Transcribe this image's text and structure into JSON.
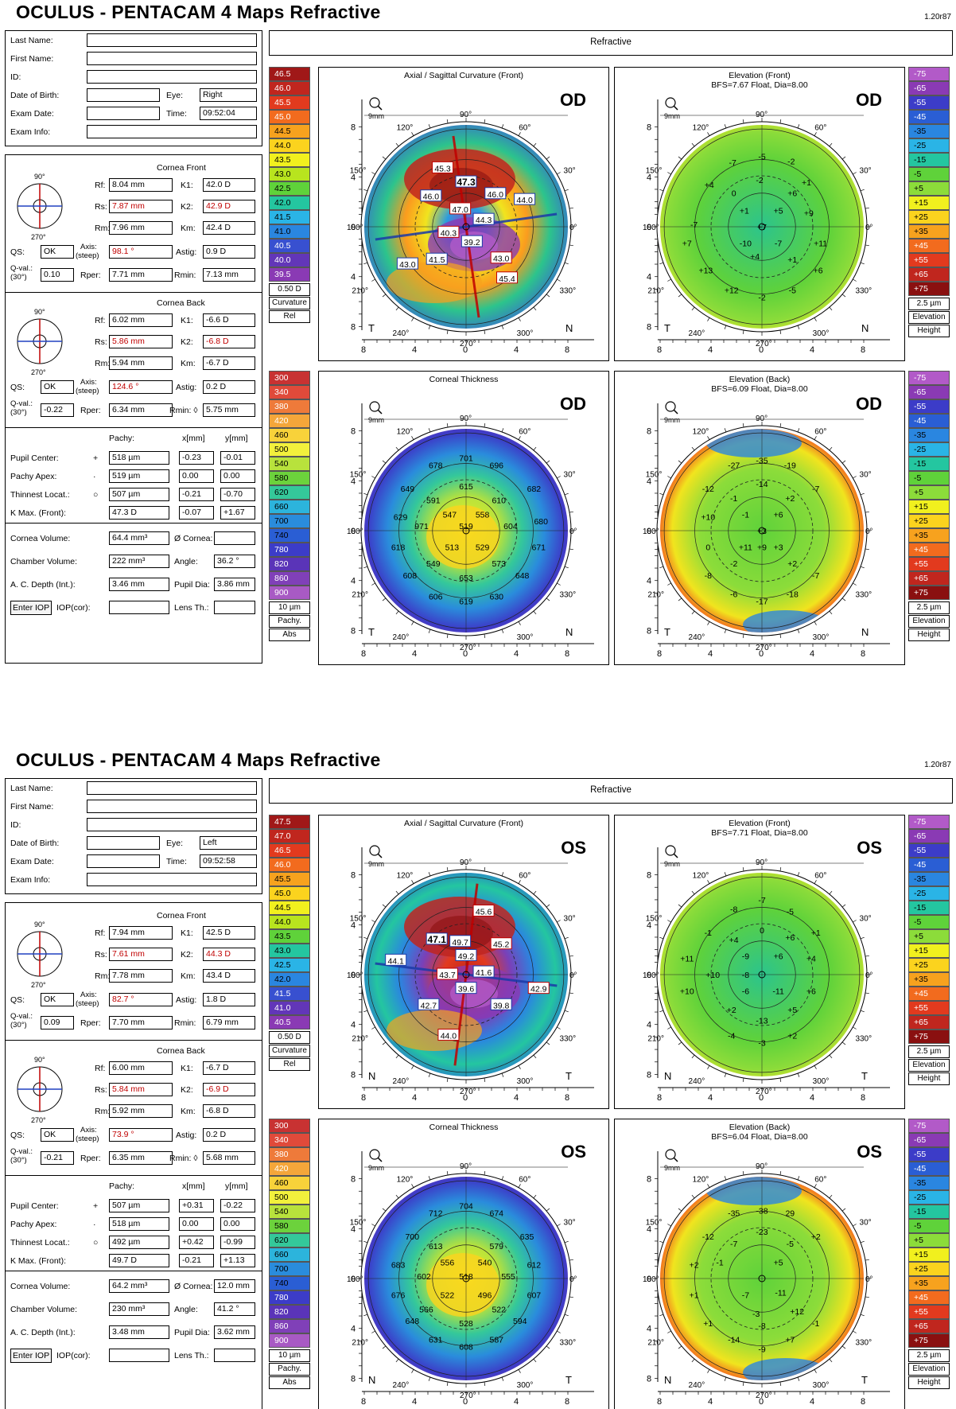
{
  "reports": [
    {
      "title": "OCULUS  -  PENTACAM   4 Maps Refractive",
      "version": "1.20r87",
      "panel": "Refractive",
      "eye_code": "OD",
      "patient": {
        "last_name_label": "Last Name:",
        "last_name": "",
        "first_name_label": "First Name:",
        "first_name": "",
        "id_label": "ID:",
        "id": "",
        "dob_label": "Date of Birth:",
        "dob": "",
        "eye_label": "Eye:",
        "eye": "Right",
        "exam_date_label": "Exam Date:",
        "exam_date": "",
        "time_label": "Time:",
        "time": "09:52:04",
        "exam_info_label": "Exam Info:",
        "exam_info": ""
      },
      "cornea_front": {
        "title": "Cornea Front",
        "rf_label": "Rf:",
        "rf": "8.04 mm",
        "k1_label": "K1:",
        "k1": "42.0 D",
        "rs_label": "Rs:",
        "rs": "7.87 mm",
        "k2_label": "K2:",
        "k2": "42.9 D",
        "rm_label": "Rm:",
        "rm": "7.96 mm",
        "km_label": "Km:",
        "km": "42.4 D",
        "qs_label": "QS:",
        "qs": "OK",
        "axis_label": "Axis:",
        "axis_sub": "(steep)",
        "axis": "98.1 °",
        "astig_label": "Astig:",
        "astig": "0.9 D",
        "qval_label": "Q-val.:",
        "qval_sub": "(30°)",
        "qval": "0.10",
        "rper_label": "Rper:",
        "rper": "7.71 mm",
        "rmin_label": "Rmin:",
        "rmin": "7.13 mm"
      },
      "cornea_back": {
        "title": "Cornea Back",
        "rf_label": "Rf:",
        "rf": "6.02 mm",
        "k1_label": "K1:",
        "k1": "-6.6 D",
        "rs_label": "Rs:",
        "rs": "5.86 mm",
        "k2_label": "K2:",
        "k2": "-6.8 D",
        "rm_label": "Rm:",
        "rm": "5.94 mm",
        "km_label": "Km:",
        "km": "-6.7 D",
        "qs_label": "QS:",
        "qs": "OK",
        "axis_label": "Axis:",
        "axis_sub": "(steep)",
        "axis": "124.6 °",
        "astig_label": "Astig:",
        "astig": "0.2 D",
        "qval_label": "Q-val.:",
        "qval_sub": "(30°)",
        "qval": "-0.22",
        "rper_label": "Rper:",
        "rper": "6.34 mm",
        "rmin_label": "Rmin: ◊",
        "rmin": "5.75 mm"
      },
      "pachy": {
        "col_pachy": "Pachy:",
        "col_x": "x[mm]",
        "col_y": "y[mm]",
        "rows": [
          {
            "label": "Pupil Center:",
            "sym": "+",
            "pachy": "518 µm",
            "x": "-0.23",
            "y": "-0.01"
          },
          {
            "label": "Pachy Apex:",
            "sym": "·",
            "pachy": "519 µm",
            "x": "0.00",
            "y": "0.00"
          },
          {
            "label": "Thinnest Locat.:",
            "sym": "○",
            "pachy": "507 µm",
            "x": "-0.21",
            "y": "-0.70"
          },
          {
            "label": "K Max. (Front):",
            "sym": "",
            "pachy": "47.3 D",
            "x": "-0.07",
            "y": "+1.67"
          }
        ]
      },
      "volume": {
        "cornea_volume_label": "Cornea Volume:",
        "cornea_volume": "64.4 mm³",
        "cornea_diam_label": "Ø Cornea:",
        "cornea_diam": "",
        "chamber_volume_label": "Chamber Volume:",
        "chamber_volume": "222 mm³",
        "angle_label": "Angle:",
        "angle": "36.2 °",
        "acd_label": "A. C. Depth (Int.):",
        "acd": "3.46 mm",
        "pupil_dia_label": "Pupil Dia:",
        "pupil_dia": "3.86 mm",
        "enter_iop": "Enter IOP",
        "iop_cor_label": "IOP(cor):",
        "iop_cor": "",
        "lens_th_label": "Lens Th.:",
        "lens_th": ""
      },
      "curv_scale": {
        "values": [
          "46.5",
          "46.0",
          "45.5",
          "45.0",
          "44.5",
          "44.0",
          "43.5",
          "43.0",
          "42.5",
          "42.0",
          "41.5",
          "41.0",
          "40.5",
          "40.0",
          "39.5"
        ],
        "step": "0.50 D",
        "label1": "Curvature",
        "label2": "Rel"
      },
      "pachy_scale": {
        "values": [
          "300",
          "340",
          "380",
          "420",
          "460",
          "500",
          "540",
          "580",
          "620",
          "660",
          "700",
          "740",
          "780",
          "820",
          "860",
          "900"
        ],
        "step": "10 µm",
        "label1": "Pachy.",
        "label2": "Abs"
      },
      "elev_scale": {
        "values": [
          "-75",
          "-65",
          "-55",
          "-45",
          "-35",
          "-25",
          "-15",
          "-5",
          "+5",
          "+15",
          "+25",
          "+35",
          "+45",
          "+55",
          "+65",
          "+75"
        ],
        "step": "2.5 µm",
        "label1": "Elevation",
        "label2": "Height"
      },
      "maps": {
        "axial": {
          "title": "Axial / Sagittal Curvature (Front)",
          "subtitle": "",
          "left": "T",
          "right": "N",
          "labels": [
            "45.3",
            "47.3",
            "46.0",
            "47.0",
            "46.0",
            "44.0",
            "40.3",
            "44.3",
            "39.2",
            "43.0",
            "43.0",
            "41.5",
            "45.4"
          ]
        },
        "elev_front": {
          "title": "Elevation (Front)",
          "subtitle": "BFS=7.67 Float, Dia=8.00",
          "left": "T",
          "right": "N",
          "labels": [
            "-5",
            "-7",
            "-2",
            "-2",
            "+1",
            "+4",
            "0",
            "+6",
            "+1",
            "+5",
            "+9",
            "-7",
            "+7",
            "-10",
            "-7",
            "+11",
            "+7",
            "+1",
            "+13",
            "+4",
            "+6",
            "+12",
            "-2",
            "-5"
          ]
        },
        "thickness": {
          "title": "Corneal Thickness",
          "subtitle": "",
          "left": "T",
          "right": "N",
          "labels": [
            "701",
            "678",
            "696",
            "615",
            "649",
            "591",
            "610",
            "682",
            "547",
            "558",
            "629",
            "971",
            "519",
            "604",
            "618",
            "513",
            "529",
            "680",
            "671",
            "549",
            "573",
            "608",
            "653",
            "648",
            "606",
            "619",
            "630"
          ]
        },
        "elev_back": {
          "title": "Elevation (Back)",
          "subtitle": "BFS=6.09 Float, Dia=8.00",
          "left": "T",
          "right": "N",
          "labels": [
            "-35",
            "-27",
            "-19",
            "-14",
            "-12",
            "+2",
            "-1",
            "-7",
            "-1",
            "+6",
            "+3",
            "+10",
            "0",
            "+3",
            "+11",
            "+9",
            "+2",
            "-8",
            "-2",
            "-7",
            "-6",
            "-17",
            "-18"
          ]
        }
      }
    },
    {
      "title": "OCULUS  -  PENTACAM   4 Maps Refractive",
      "version": "1.20r87",
      "panel": "Refractive",
      "eye_code": "OS",
      "patient": {
        "last_name_label": "Last Name:",
        "last_name": "",
        "first_name_label": "First Name:",
        "first_name": "",
        "id_label": "ID:",
        "id": "",
        "dob_label": "Date of Birth:",
        "dob": "",
        "eye_label": "Eye:",
        "eye": "Left",
        "exam_date_label": "Exam Date:",
        "exam_date": "",
        "time_label": "Time:",
        "time": "09:52:58",
        "exam_info_label": "Exam Info:",
        "exam_info": ""
      },
      "cornea_front": {
        "title": "Cornea Front",
        "rf_label": "Rf:",
        "rf": "7.94 mm",
        "k1_label": "K1:",
        "k1": "42.5 D",
        "rs_label": "Rs:",
        "rs": "7.61 mm",
        "k2_label": "K2:",
        "k2": "44.3 D",
        "rm_label": "Rm:",
        "rm": "7.78 mm",
        "km_label": "Km:",
        "km": "43.4 D",
        "qs_label": "QS:",
        "qs": "OK",
        "axis_label": "Axis:",
        "axis_sub": "(steep)",
        "axis": "82.7 °",
        "astig_label": "Astig:",
        "astig": "1.8 D",
        "qval_label": "Q-val.:",
        "qval_sub": "(30°)",
        "qval": "0.09",
        "rper_label": "Rper:",
        "rper": "7.70 mm",
        "rmin_label": "Rmin:",
        "rmin": "6.79 mm"
      },
      "cornea_back": {
        "title": "Cornea Back",
        "rf_label": "Rf:",
        "rf": "6.00 mm",
        "k1_label": "K1:",
        "k1": "-6.7 D",
        "rs_label": "Rs:",
        "rs": "5.84 mm",
        "k2_label": "K2:",
        "k2": "-6.9 D",
        "rm_label": "Rm:",
        "rm": "5.92 mm",
        "km_label": "Km:",
        "km": "-6.8 D",
        "qs_label": "QS:",
        "qs": "OK",
        "axis_label": "Axis:",
        "axis_sub": "(steep)",
        "axis": "73.9 °",
        "astig_label": "Astig:",
        "astig": "0.2 D",
        "qval_label": "Q-val.:",
        "qval_sub": "(30°)",
        "qval": "-0.21",
        "rper_label": "Rper:",
        "rper": "6.35 mm",
        "rmin_label": "Rmin: ◊",
        "rmin": "5.68 mm"
      },
      "pachy": {
        "col_pachy": "Pachy:",
        "col_x": "x[mm]",
        "col_y": "y[mm]",
        "rows": [
          {
            "label": "Pupil Center:",
            "sym": "+",
            "pachy": "507 µm",
            "x": "+0.31",
            "y": "-0.22"
          },
          {
            "label": "Pachy Apex:",
            "sym": "·",
            "pachy": "518 µm",
            "x": "0.00",
            "y": "0.00"
          },
          {
            "label": "Thinnest Locat.:",
            "sym": "○",
            "pachy": "492 µm",
            "x": "+0.42",
            "y": "-0.99"
          },
          {
            "label": "K Max. (Front):",
            "sym": "",
            "pachy": "49.7 D",
            "x": "-0.21",
            "y": "+1.13"
          }
        ]
      },
      "volume": {
        "cornea_volume_label": "Cornea Volume:",
        "cornea_volume": "64.2 mm³",
        "cornea_diam_label": "Ø Cornea:",
        "cornea_diam": "12.0 mm",
        "chamber_volume_label": "Chamber Volume:",
        "chamber_volume": "230 mm³",
        "angle_label": "Angle:",
        "angle": "41.2 °",
        "acd_label": "A. C. Depth (Int.):",
        "acd": "3.48 mm",
        "pupil_dia_label": "Pupil Dia:",
        "pupil_dia": "3.62 mm",
        "enter_iop": "Enter IOP",
        "iop_cor_label": "IOP(cor):",
        "iop_cor": "",
        "lens_th_label": "Lens Th.:",
        "lens_th": ""
      },
      "curv_scale": {
        "values": [
          "47.5",
          "47.0",
          "46.5",
          "46.0",
          "45.5",
          "45.0",
          "44.5",
          "44.0",
          "43.5",
          "43.0",
          "42.5",
          "42.0",
          "41.5",
          "41.0",
          "40.5"
        ],
        "step": "0.50 D",
        "label1": "Curvature",
        "label2": "Rel"
      },
      "pachy_scale": {
        "values": [
          "300",
          "340",
          "380",
          "420",
          "460",
          "500",
          "540",
          "580",
          "620",
          "660",
          "700",
          "740",
          "780",
          "820",
          "860",
          "900"
        ],
        "step": "10 µm",
        "label1": "Pachy.",
        "label2": "Abs"
      },
      "elev_scale": {
        "values": [
          "-75",
          "-65",
          "-55",
          "-45",
          "-35",
          "-25",
          "-15",
          "-5",
          "+5",
          "+15",
          "+25",
          "+35",
          "+45",
          "+55",
          "+65",
          "+75"
        ],
        "step": "2.5 µm",
        "label1": "Elevation",
        "label2": "Height"
      },
      "maps": {
        "axial": {
          "title": "Axial / Sagittal Curvature (Front)",
          "subtitle": "",
          "left": "N",
          "right": "T",
          "labels": [
            "45.6",
            "47.1",
            "49.7",
            "45.2",
            "44.1",
            "49.2",
            "43.7",
            "41.6",
            "39.6",
            "42.9",
            "42.7",
            "39.8",
            "44.0"
          ]
        },
        "elev_front": {
          "title": "Elevation (Front)",
          "subtitle": "BFS=7.71 Float, Dia=8.00",
          "left": "N",
          "right": "T",
          "labels": [
            "-7",
            "-8",
            "-5",
            "-1",
            "+4",
            "0",
            "+6",
            "+1",
            "-9",
            "+6",
            "+11",
            "+10",
            "-8",
            "+4",
            "+10",
            "-6",
            "-11",
            "+6",
            "+2",
            "-13",
            "+5",
            "-4",
            "-3",
            "+2"
          ]
        },
        "thickness": {
          "title": "Corneal Thickness",
          "subtitle": "",
          "left": "N",
          "right": "T",
          "labels": [
            "704",
            "712",
            "674",
            "700",
            "613",
            "579",
            "635",
            "683",
            "556",
            "540",
            "612",
            "602",
            "518",
            "555",
            "676",
            "522",
            "496",
            "607",
            "566",
            "522",
            "648",
            "528",
            "594",
            "631",
            "608",
            "587"
          ]
        },
        "elev_back": {
          "title": "Elevation (Back)",
          "subtitle": "BFS=6.04 Float, Dia=8.00",
          "left": "N",
          "right": "T",
          "labels": [
            "-35",
            "-38",
            "29",
            "-23",
            "-12",
            "-7",
            "-5",
            "+2",
            "+2",
            "-1",
            "+5",
            "+1",
            "-7",
            "-11",
            "+12",
            "+1",
            "-1",
            "-3",
            "-8",
            "-14",
            "+7",
            "-9"
          ]
        }
      }
    }
  ]
}
